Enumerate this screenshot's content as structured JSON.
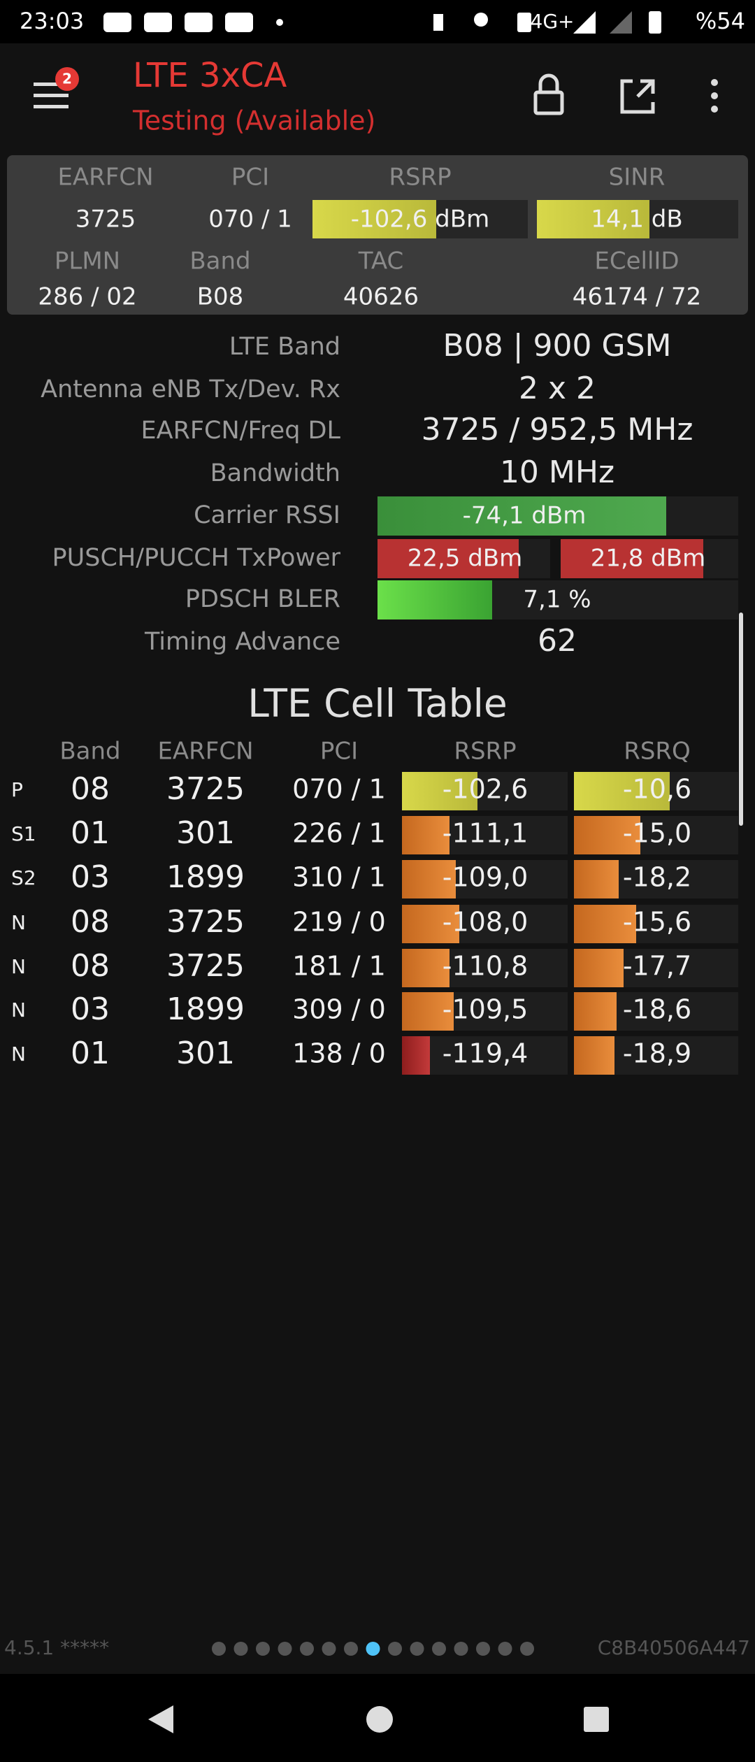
{
  "status_bar": {
    "time": "23:03",
    "network": "4G+",
    "battery": "%54"
  },
  "app_bar": {
    "badge": "2",
    "title": "LTE 3xCA",
    "subtitle": "Testing (Available)"
  },
  "summary": {
    "row1_headers": [
      "EARFCN",
      "PCI",
      "RSRP",
      "SINR"
    ],
    "row1_values": [
      "3725",
      "070 / 1",
      "-102,6 dBm",
      "14,1 dB"
    ],
    "row2_headers": [
      "PLMN",
      "Band",
      "TAC",
      "ECellID"
    ],
    "row2_values": [
      "286 / 02",
      "B08",
      "40626",
      "46174 / 72"
    ]
  },
  "details": [
    {
      "label": "LTE Band",
      "values": [
        "B08 | 900 GSM"
      ]
    },
    {
      "label": "Antenna eNB Tx/Dev. Rx",
      "values": [
        "2 x 2"
      ]
    },
    {
      "label": "EARFCN/Freq DL",
      "values": [
        "3725 / 952,5 MHz"
      ]
    },
    {
      "label": "Bandwidth",
      "values": [
        "10 MHz"
      ]
    },
    {
      "label": "Carrier RSSI",
      "values": [
        "-74,1 dBm"
      ]
    },
    {
      "label": "PUSCH/PUCCH TxPower",
      "values": [
        "22,5 dBm",
        "21,8 dBm"
      ]
    },
    {
      "label": "PDSCH BLER",
      "values": [
        "7,1 %"
      ]
    },
    {
      "label": "Timing Advance",
      "values": [
        "62"
      ]
    }
  ],
  "cell_table": {
    "title": "LTE Cell Table",
    "columns": [
      "Band",
      "EARFCN",
      "PCI",
      "RSRP",
      "RSRQ"
    ],
    "rows": [
      [
        "P",
        "08",
        "3725",
        "070 / 1",
        "-102,6",
        "-10,6"
      ],
      [
        "S1",
        "01",
        "301",
        "226 / 1",
        "-111,1",
        "-15,0"
      ],
      [
        "S2",
        "03",
        "1899",
        "310 / 1",
        "-109,0",
        "-18,2"
      ],
      [
        "N",
        "08",
        "3725",
        "219 / 0",
        "-108,0",
        "-15,6"
      ],
      [
        "N",
        "08",
        "3725",
        "181 / 1",
        "-110,8",
        "-17,7"
      ],
      [
        "N",
        "03",
        "1899",
        "309 / 0",
        "-109,5",
        "-18,6"
      ],
      [
        "N",
        "01",
        "301",
        "138 / 0",
        "-119,4",
        "-18,9"
      ]
    ]
  },
  "footer": {
    "version": "4.5.1 *****",
    "device_id": "C8B40506A447"
  }
}
